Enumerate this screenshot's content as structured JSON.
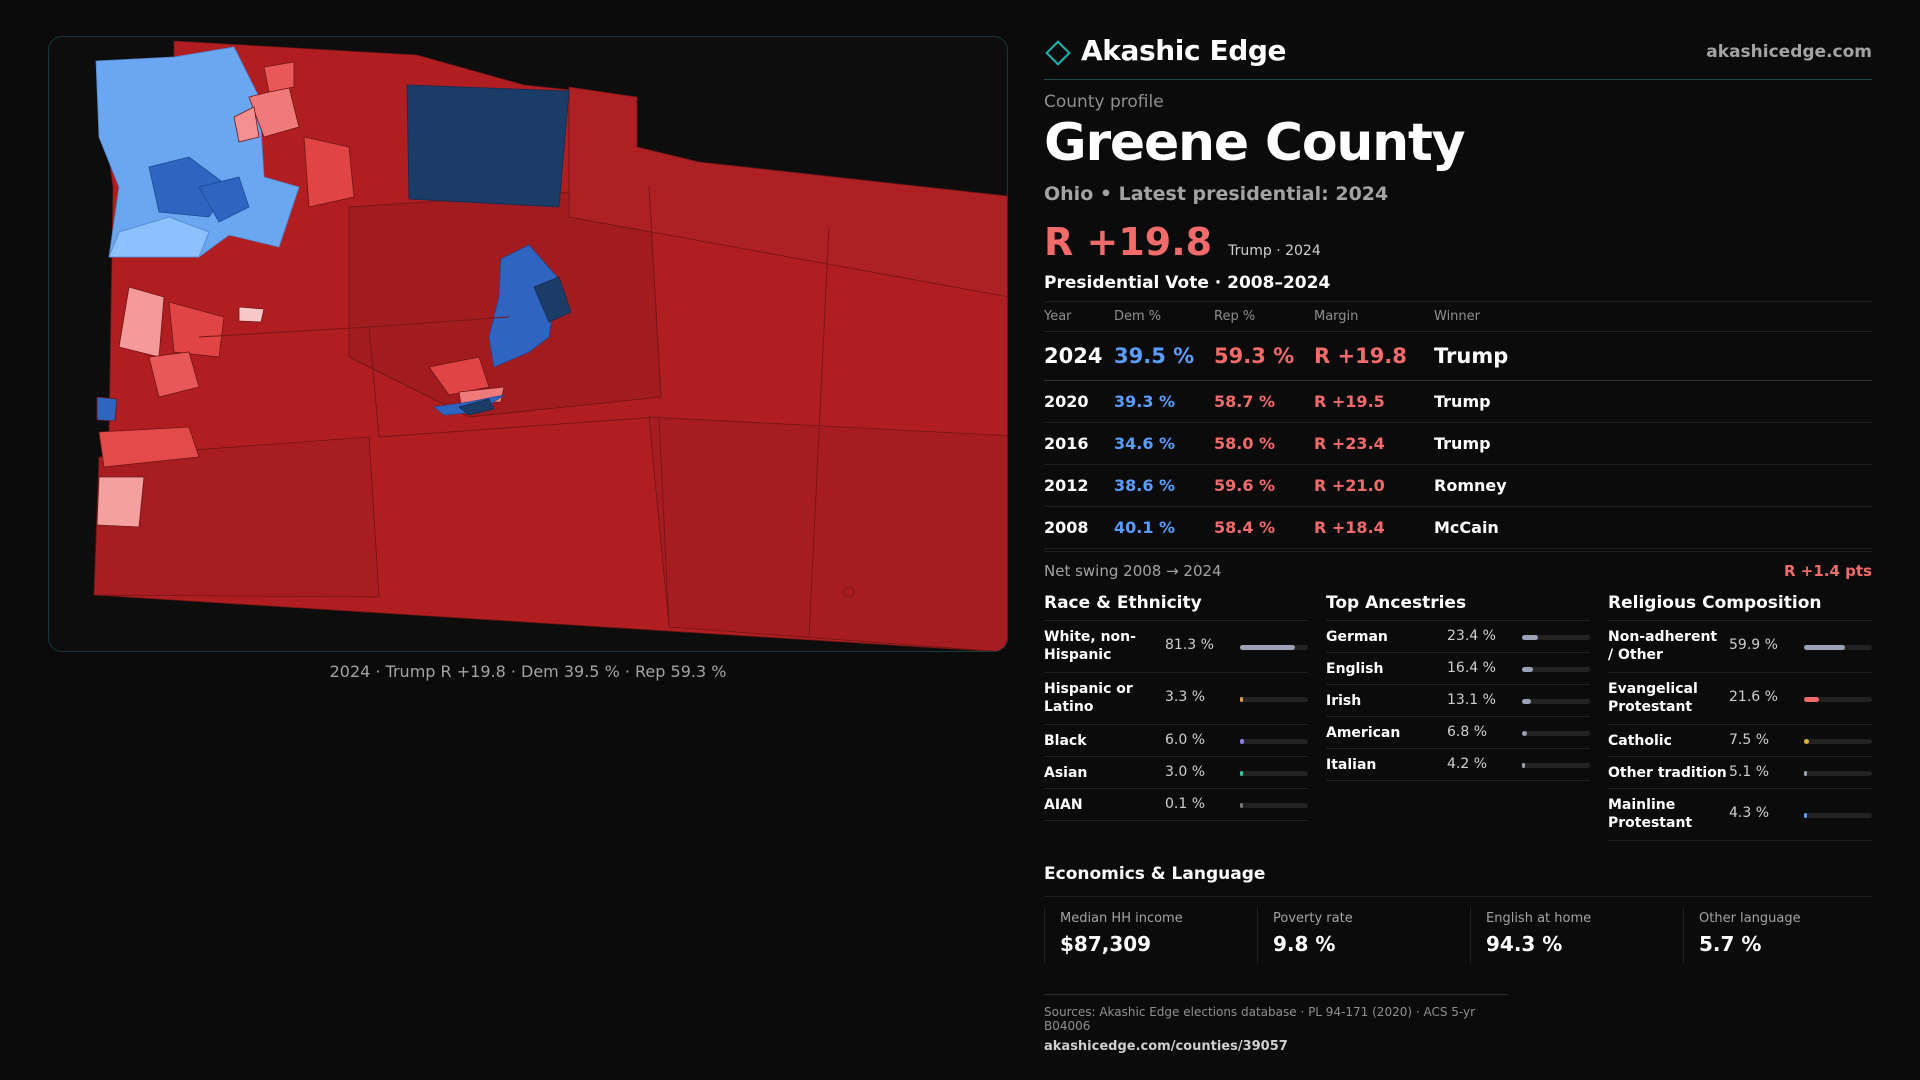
{
  "brand": {
    "name": "Akashic Edge",
    "url": "akashicedge.com",
    "logo_icon": "diamond-outline-icon"
  },
  "profile": {
    "kicker": "County profile",
    "county": "Greene County",
    "subtitle": "Ohio • Latest presidential: 2024",
    "headline_margin": "R +19.8",
    "headline_note": "Trump · 2024"
  },
  "map": {
    "caption": "2024 · Trump R +19.8 · Dem 39.5 % · Rep 59.3 %"
  },
  "vote_history": {
    "title": "Presidential Vote · 2008–2024",
    "columns": [
      "Year",
      "Dem %",
      "Rep %",
      "Margin",
      "Winner"
    ],
    "rows": [
      {
        "year": "2024",
        "dem": "39.5 %",
        "rep": "59.3 %",
        "margin": "R +19.8",
        "winner": "Trump"
      },
      {
        "year": "2020",
        "dem": "39.3 %",
        "rep": "58.7 %",
        "margin": "R +19.5",
        "winner": "Trump"
      },
      {
        "year": "2016",
        "dem": "34.6 %",
        "rep": "58.0 %",
        "margin": "R +23.4",
        "winner": "Trump"
      },
      {
        "year": "2012",
        "dem": "38.6 %",
        "rep": "59.6 %",
        "margin": "R +21.0",
        "winner": "Romney"
      },
      {
        "year": "2008",
        "dem": "40.1 %",
        "rep": "58.4 %",
        "margin": "R +18.4",
        "winner": "McCain"
      }
    ],
    "swing_label": "Net swing 2008 → 2024",
    "swing_value": "R +1.4 pts"
  },
  "race": {
    "title": "Race & Ethnicity",
    "items": [
      {
        "label": "White, non-Hispanic",
        "value": "81.3 %",
        "pct": 81.3,
        "color": "#9aa3b5"
      },
      {
        "label": "Hispanic or Latino",
        "value": "3.3 %",
        "pct": 3.3,
        "color": "#e0a030"
      },
      {
        "label": "Black",
        "value": "6.0 %",
        "pct": 6.0,
        "color": "#8f7ae6"
      },
      {
        "label": "Asian",
        "value": "3.0 %",
        "pct": 3.0,
        "color": "#2fc49a"
      },
      {
        "label": "AIAN",
        "value": "0.1 %",
        "pct": 0.1,
        "color": "#7a7a7a"
      }
    ]
  },
  "ancestry": {
    "title": "Top Ancestries",
    "items": [
      {
        "label": "German",
        "value": "23.4 %",
        "pct": 23.4,
        "color": "#9aa3b5"
      },
      {
        "label": "English",
        "value": "16.4 %",
        "pct": 16.4,
        "color": "#9aa3b5"
      },
      {
        "label": "Irish",
        "value": "13.1 %",
        "pct": 13.1,
        "color": "#9aa3b5"
      },
      {
        "label": "American",
        "value": "6.8 %",
        "pct": 6.8,
        "color": "#9aa3b5"
      },
      {
        "label": "Italian",
        "value": "4.2 %",
        "pct": 4.2,
        "color": "#9aa3b5"
      }
    ]
  },
  "religion": {
    "title": "Religious Composition",
    "items": [
      {
        "label": "Non-adherent / Other",
        "value": "59.9 %",
        "pct": 59.9,
        "color": "#9aa3b5"
      },
      {
        "label": "Evangelical Protestant",
        "value": "21.6 %",
        "pct": 21.6,
        "color": "#f26b6b"
      },
      {
        "label": "Catholic",
        "value": "7.5 %",
        "pct": 7.5,
        "color": "#e0b030"
      },
      {
        "label": "Other tradition",
        "value": "5.1 %",
        "pct": 5.1,
        "color": "#9aa3b5"
      },
      {
        "label": "Mainline Protestant",
        "value": "4.3 %",
        "pct": 4.3,
        "color": "#5b9dff"
      }
    ]
  },
  "economics": {
    "title": "Economics & Language",
    "items": [
      {
        "label": "Median HH income",
        "value": "$87,309"
      },
      {
        "label": "Poverty rate",
        "value": "9.8 %"
      },
      {
        "label": "English at home",
        "value": "94.3 %"
      },
      {
        "label": "Other language",
        "value": "5.7 %"
      }
    ]
  },
  "sources": {
    "line1": "Sources: Akashic Edge elections database · PL 94-171 (2020) · ACS 5-yr B04006",
    "line2": "akashicedge.com/counties/39057"
  },
  "colors": {
    "rep": "#f26b6b",
    "dem": "#5b9dff",
    "accent": "#1fb3b3"
  }
}
